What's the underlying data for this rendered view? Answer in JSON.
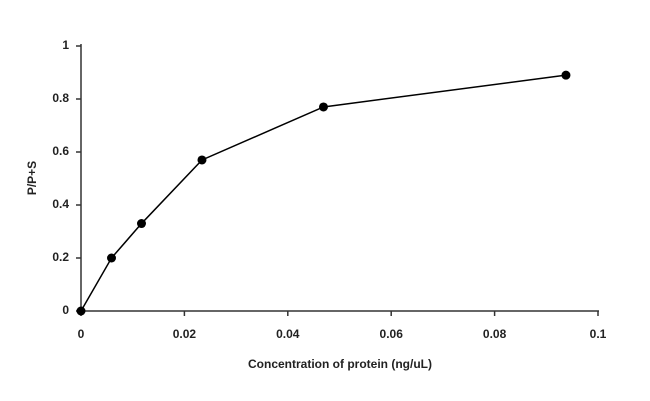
{
  "chart_data": {
    "type": "line",
    "x_label": "Concentration of protein (ng/uL)",
    "y_label": "P/P+S",
    "x": [
      0,
      0.0059,
      0.0117,
      0.0234,
      0.0469,
      0.0938
    ],
    "series": [
      {
        "color": "#000000",
        "values": [
          0,
          0.2,
          0.33,
          0.57,
          0.77,
          0.89
        ]
      }
    ],
    "xlim": [
      0,
      0.1
    ],
    "xticks": [
      0,
      0.02,
      0.04,
      0.06,
      0.08,
      0.1
    ],
    "ylim": [
      0,
      1
    ],
    "yticks": [
      0,
      0.2,
      0.4,
      0.6,
      0.8,
      1
    ],
    "grid": false
  }
}
